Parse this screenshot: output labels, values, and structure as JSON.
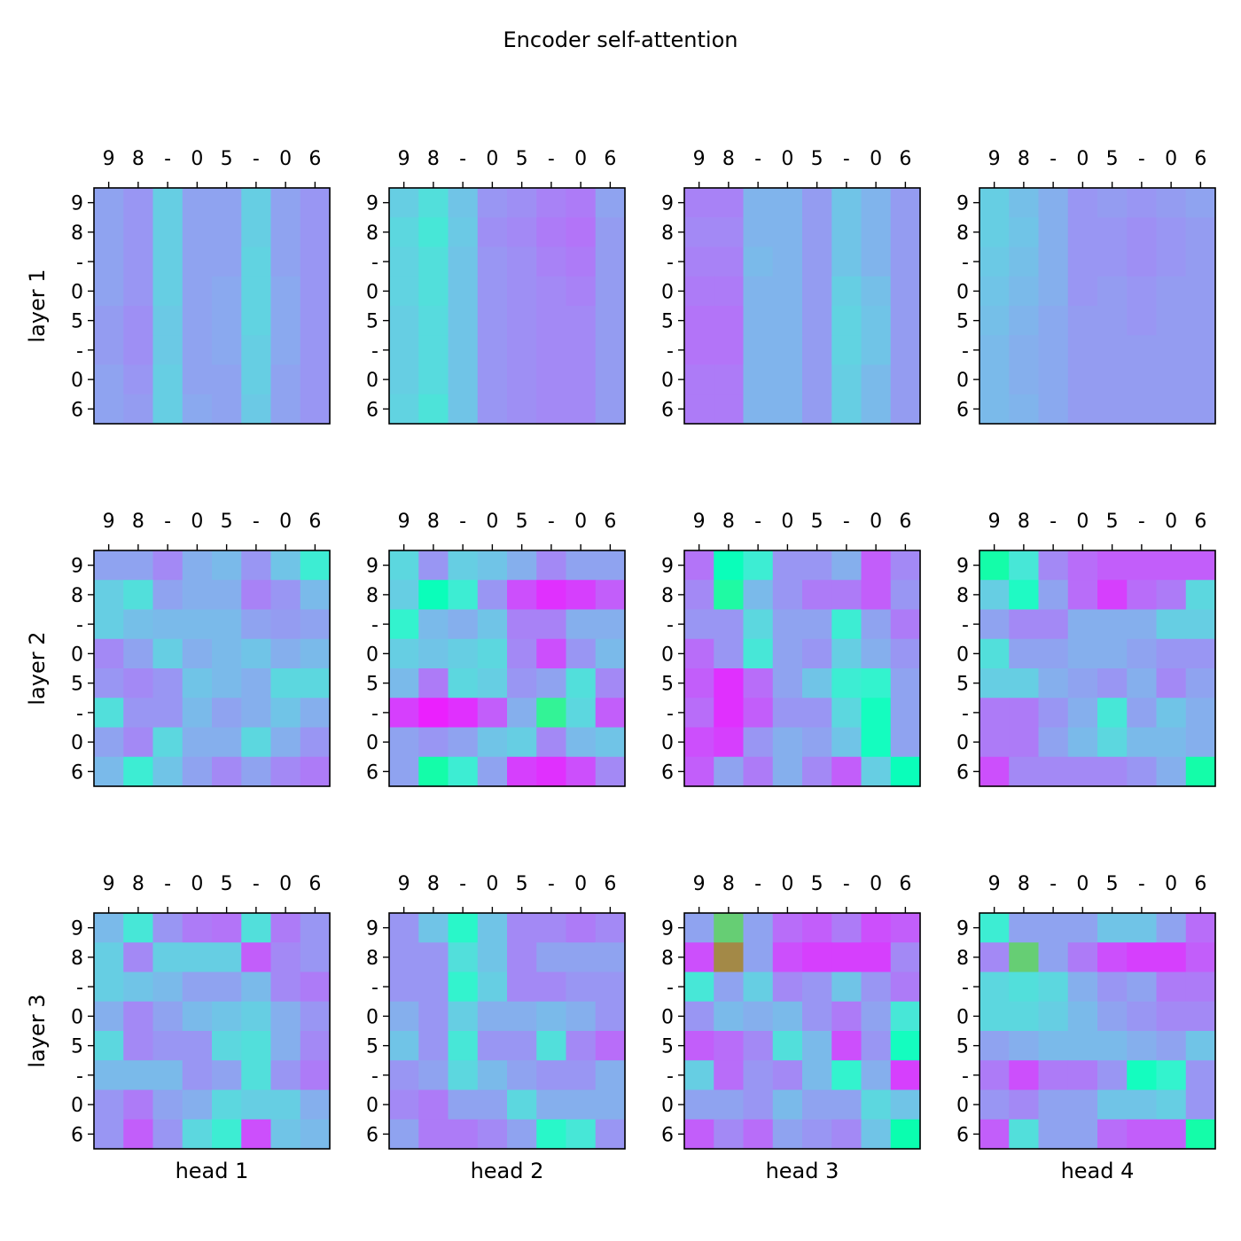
{
  "chart_data": {
    "type": "heatmap",
    "title": "Encoder self-attention",
    "row_labels": [
      "layer 1",
      "layer 2",
      "layer 3"
    ],
    "col_labels": [
      "head 1",
      "head 2",
      "head 3",
      "head 4"
    ],
    "tokens": [
      "9",
      "8",
      "-",
      "0",
      "5",
      "-",
      "0",
      "6"
    ],
    "colormap": "rainbow",
    "value_range": [
      0,
      1
    ],
    "matrices": [
      [
        [
          [
            0.22,
            0.2,
            0.3,
            0.22,
            0.22,
            0.3,
            0.22,
            0.2
          ],
          [
            0.22,
            0.2,
            0.3,
            0.22,
            0.22,
            0.3,
            0.22,
            0.2
          ],
          [
            0.22,
            0.2,
            0.3,
            0.22,
            0.22,
            0.31,
            0.22,
            0.2
          ],
          [
            0.22,
            0.2,
            0.3,
            0.22,
            0.23,
            0.31,
            0.23,
            0.2
          ],
          [
            0.21,
            0.19,
            0.29,
            0.22,
            0.23,
            0.31,
            0.23,
            0.2
          ],
          [
            0.21,
            0.19,
            0.29,
            0.22,
            0.23,
            0.3,
            0.23,
            0.2
          ],
          [
            0.22,
            0.2,
            0.3,
            0.22,
            0.22,
            0.3,
            0.22,
            0.2
          ],
          [
            0.22,
            0.21,
            0.3,
            0.23,
            0.22,
            0.29,
            0.22,
            0.2
          ]
        ],
        [
          [
            0.3,
            0.34,
            0.28,
            0.2,
            0.19,
            0.17,
            0.16,
            0.22
          ],
          [
            0.32,
            0.36,
            0.29,
            0.19,
            0.18,
            0.16,
            0.15,
            0.21
          ],
          [
            0.31,
            0.34,
            0.28,
            0.2,
            0.19,
            0.17,
            0.16,
            0.21
          ],
          [
            0.31,
            0.34,
            0.28,
            0.2,
            0.19,
            0.18,
            0.17,
            0.21
          ],
          [
            0.3,
            0.33,
            0.28,
            0.2,
            0.19,
            0.18,
            0.18,
            0.21
          ],
          [
            0.3,
            0.33,
            0.28,
            0.2,
            0.19,
            0.18,
            0.18,
            0.21
          ],
          [
            0.3,
            0.33,
            0.28,
            0.2,
            0.19,
            0.18,
            0.18,
            0.21
          ],
          [
            0.31,
            0.35,
            0.28,
            0.2,
            0.19,
            0.18,
            0.18,
            0.21
          ]
        ],
        [
          [
            0.17,
            0.17,
            0.25,
            0.25,
            0.21,
            0.28,
            0.25,
            0.21
          ],
          [
            0.18,
            0.18,
            0.25,
            0.25,
            0.21,
            0.28,
            0.25,
            0.21
          ],
          [
            0.17,
            0.17,
            0.26,
            0.25,
            0.21,
            0.28,
            0.25,
            0.21
          ],
          [
            0.16,
            0.16,
            0.25,
            0.25,
            0.21,
            0.3,
            0.27,
            0.21
          ],
          [
            0.15,
            0.15,
            0.25,
            0.25,
            0.21,
            0.31,
            0.28,
            0.21
          ],
          [
            0.15,
            0.15,
            0.25,
            0.25,
            0.21,
            0.31,
            0.28,
            0.21
          ],
          [
            0.16,
            0.16,
            0.25,
            0.25,
            0.21,
            0.3,
            0.26,
            0.21
          ],
          [
            0.16,
            0.16,
            0.25,
            0.25,
            0.21,
            0.3,
            0.26,
            0.21
          ]
        ],
        [
          [
            0.3,
            0.27,
            0.24,
            0.2,
            0.21,
            0.2,
            0.21,
            0.22
          ],
          [
            0.3,
            0.28,
            0.24,
            0.2,
            0.2,
            0.19,
            0.2,
            0.21
          ],
          [
            0.29,
            0.27,
            0.24,
            0.2,
            0.2,
            0.19,
            0.2,
            0.21
          ],
          [
            0.28,
            0.26,
            0.24,
            0.2,
            0.21,
            0.2,
            0.21,
            0.21
          ],
          [
            0.27,
            0.25,
            0.23,
            0.21,
            0.21,
            0.2,
            0.21,
            0.21
          ],
          [
            0.26,
            0.24,
            0.23,
            0.21,
            0.21,
            0.21,
            0.21,
            0.21
          ],
          [
            0.26,
            0.24,
            0.23,
            0.21,
            0.21,
            0.21,
            0.21,
            0.21
          ],
          [
            0.26,
            0.25,
            0.23,
            0.21,
            0.21,
            0.21,
            0.21,
            0.21
          ]
        ]
      ],
      [
        [
          [
            0.22,
            0.22,
            0.18,
            0.24,
            0.26,
            0.2,
            0.28,
            0.38
          ],
          [
            0.3,
            0.34,
            0.22,
            0.24,
            0.24,
            0.17,
            0.2,
            0.26
          ],
          [
            0.3,
            0.27,
            0.26,
            0.26,
            0.26,
            0.22,
            0.21,
            0.22
          ],
          [
            0.18,
            0.22,
            0.3,
            0.24,
            0.26,
            0.28,
            0.24,
            0.26
          ],
          [
            0.2,
            0.18,
            0.2,
            0.28,
            0.26,
            0.24,
            0.32,
            0.32
          ],
          [
            0.34,
            0.2,
            0.2,
            0.26,
            0.22,
            0.24,
            0.28,
            0.24
          ],
          [
            0.22,
            0.18,
            0.32,
            0.24,
            0.24,
            0.32,
            0.24,
            0.2
          ],
          [
            0.26,
            0.38,
            0.28,
            0.22,
            0.18,
            0.22,
            0.18,
            0.16
          ]
        ],
        [
          [
            0.32,
            0.2,
            0.3,
            0.28,
            0.24,
            0.18,
            0.22,
            0.22
          ],
          [
            0.3,
            0.48,
            0.38,
            0.2,
            0.1,
            0.06,
            0.08,
            0.12
          ],
          [
            0.4,
            0.26,
            0.24,
            0.28,
            0.17,
            0.17,
            0.24,
            0.24
          ],
          [
            0.3,
            0.28,
            0.3,
            0.32,
            0.18,
            0.1,
            0.2,
            0.26
          ],
          [
            0.26,
            0.16,
            0.32,
            0.3,
            0.2,
            0.22,
            0.34,
            0.18
          ],
          [
            0.08,
            0.04,
            0.06,
            0.12,
            0.24,
            0.6,
            0.32,
            0.12
          ],
          [
            0.22,
            0.2,
            0.22,
            0.28,
            0.3,
            0.18,
            0.26,
            0.28
          ],
          [
            0.22,
            0.54,
            0.38,
            0.22,
            0.08,
            0.06,
            0.1,
            0.18
          ]
        ],
        [
          [
            0.15,
            0.48,
            0.38,
            0.2,
            0.2,
            0.24,
            0.12,
            0.18
          ],
          [
            0.18,
            0.56,
            0.26,
            0.2,
            0.16,
            0.16,
            0.12,
            0.2
          ],
          [
            0.2,
            0.2,
            0.32,
            0.22,
            0.22,
            0.38,
            0.22,
            0.16
          ],
          [
            0.14,
            0.2,
            0.36,
            0.22,
            0.2,
            0.3,
            0.24,
            0.2
          ],
          [
            0.12,
            0.06,
            0.14,
            0.22,
            0.28,
            0.38,
            0.4,
            0.22
          ],
          [
            0.14,
            0.06,
            0.12,
            0.2,
            0.2,
            0.32,
            0.46,
            0.22
          ],
          [
            0.1,
            0.08,
            0.2,
            0.24,
            0.22,
            0.28,
            0.46,
            0.22
          ],
          [
            0.12,
            0.22,
            0.16,
            0.24,
            0.18,
            0.12,
            0.3,
            0.48
          ]
        ],
        [
          [
            0.54,
            0.36,
            0.18,
            0.14,
            0.12,
            0.12,
            0.12,
            0.12
          ],
          [
            0.3,
            0.44,
            0.22,
            0.14,
            0.08,
            0.14,
            0.16,
            0.32
          ],
          [
            0.22,
            0.18,
            0.18,
            0.24,
            0.24,
            0.24,
            0.3,
            0.3
          ],
          [
            0.34,
            0.22,
            0.22,
            0.24,
            0.24,
            0.22,
            0.2,
            0.2
          ],
          [
            0.3,
            0.3,
            0.24,
            0.22,
            0.2,
            0.24,
            0.18,
            0.22
          ],
          [
            0.16,
            0.16,
            0.2,
            0.24,
            0.36,
            0.22,
            0.28,
            0.24
          ],
          [
            0.16,
            0.16,
            0.22,
            0.26,
            0.32,
            0.26,
            0.26,
            0.24
          ],
          [
            0.1,
            0.18,
            0.18,
            0.18,
            0.18,
            0.2,
            0.24,
            0.54
          ]
        ]
      ],
      [
        [
          [
            0.26,
            0.36,
            0.2,
            0.16,
            0.15,
            0.34,
            0.16,
            0.2
          ],
          [
            0.3,
            0.18,
            0.3,
            0.3,
            0.3,
            0.12,
            0.18,
            0.2
          ],
          [
            0.3,
            0.28,
            0.26,
            0.22,
            0.22,
            0.26,
            0.18,
            0.16
          ],
          [
            0.24,
            0.18,
            0.22,
            0.26,
            0.28,
            0.3,
            0.24,
            0.2
          ],
          [
            0.32,
            0.18,
            0.2,
            0.2,
            0.32,
            0.34,
            0.24,
            0.18
          ],
          [
            0.26,
            0.26,
            0.26,
            0.2,
            0.22,
            0.34,
            0.2,
            0.16
          ],
          [
            0.2,
            0.16,
            0.22,
            0.24,
            0.32,
            0.3,
            0.3,
            0.24
          ],
          [
            0.2,
            0.12,
            0.2,
            0.32,
            0.38,
            0.1,
            0.28,
            0.26
          ]
        ],
        [
          [
            0.2,
            0.28,
            0.42,
            0.28,
            0.18,
            0.18,
            0.16,
            0.18
          ],
          [
            0.2,
            0.2,
            0.34,
            0.28,
            0.18,
            0.22,
            0.22,
            0.22
          ],
          [
            0.2,
            0.2,
            0.4,
            0.3,
            0.18,
            0.18,
            0.2,
            0.2
          ],
          [
            0.24,
            0.2,
            0.3,
            0.24,
            0.24,
            0.26,
            0.24,
            0.2
          ],
          [
            0.28,
            0.2,
            0.36,
            0.2,
            0.2,
            0.34,
            0.18,
            0.14
          ],
          [
            0.2,
            0.22,
            0.32,
            0.26,
            0.22,
            0.2,
            0.2,
            0.24
          ],
          [
            0.18,
            0.16,
            0.22,
            0.22,
            0.32,
            0.24,
            0.24,
            0.24
          ],
          [
            0.22,
            0.16,
            0.16,
            0.18,
            0.22,
            0.42,
            0.36,
            0.2
          ]
        ],
        [
          [
            0.22,
            0.7,
            0.22,
            0.14,
            0.12,
            0.16,
            0.1,
            0.12
          ],
          [
            0.1,
            0.82,
            0.22,
            0.1,
            0.08,
            0.08,
            0.08,
            0.18
          ],
          [
            0.36,
            0.22,
            0.3,
            0.18,
            0.2,
            0.28,
            0.2,
            0.16
          ],
          [
            0.2,
            0.26,
            0.24,
            0.26,
            0.2,
            0.16,
            0.22,
            0.36
          ],
          [
            0.12,
            0.14,
            0.18,
            0.34,
            0.26,
            0.1,
            0.2,
            0.46
          ],
          [
            0.3,
            0.14,
            0.2,
            0.18,
            0.26,
            0.4,
            0.24,
            0.08
          ],
          [
            0.22,
            0.22,
            0.2,
            0.26,
            0.22,
            0.22,
            0.32,
            0.28
          ],
          [
            0.12,
            0.18,
            0.14,
            0.22,
            0.2,
            0.18,
            0.28,
            0.52
          ]
        ],
        [
          [
            0.38,
            0.22,
            0.22,
            0.22,
            0.28,
            0.28,
            0.22,
            0.14
          ],
          [
            0.18,
            0.7,
            0.22,
            0.16,
            0.1,
            0.08,
            0.08,
            0.12
          ],
          [
            0.32,
            0.34,
            0.32,
            0.24,
            0.2,
            0.22,
            0.16,
            0.16
          ],
          [
            0.32,
            0.32,
            0.3,
            0.26,
            0.22,
            0.2,
            0.18,
            0.18
          ],
          [
            0.22,
            0.24,
            0.26,
            0.26,
            0.26,
            0.24,
            0.22,
            0.28
          ],
          [
            0.16,
            0.1,
            0.16,
            0.16,
            0.2,
            0.46,
            0.4,
            0.2
          ],
          [
            0.2,
            0.18,
            0.22,
            0.22,
            0.28,
            0.28,
            0.3,
            0.2
          ],
          [
            0.12,
            0.34,
            0.22,
            0.22,
            0.14,
            0.12,
            0.12,
            0.54
          ]
        ]
      ]
    ]
  }
}
